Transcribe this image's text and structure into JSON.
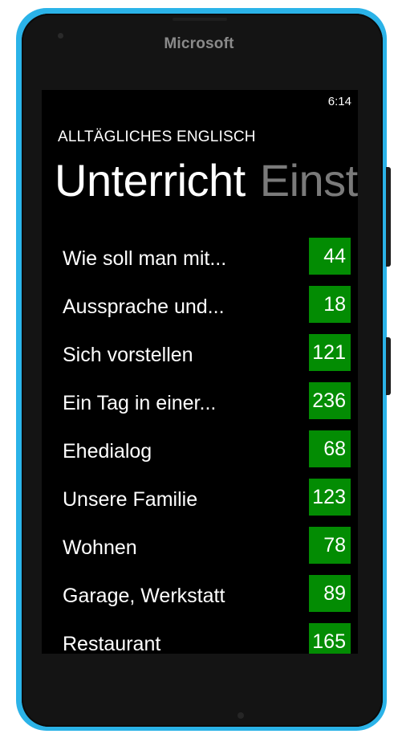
{
  "device": {
    "brand": "Microsoft"
  },
  "status_bar": {
    "time": "6:14"
  },
  "app": {
    "title": "ALLTÄGLICHES ENGLISCH"
  },
  "pivot": {
    "active": "Unterricht",
    "next": "Einst"
  },
  "lessons": [
    {
      "title": "Wie soll man mit...",
      "count": "44"
    },
    {
      "title": "Aussprache und...",
      "count": "18"
    },
    {
      "title": "Sich vorstellen",
      "count": "121"
    },
    {
      "title": "Ein Tag in einer...",
      "count": "236"
    },
    {
      "title": "Ehedialog",
      "count": "68"
    },
    {
      "title": "Unsere Familie",
      "count": "123"
    },
    {
      "title": "Wohnen",
      "count": "78"
    },
    {
      "title": "Garage, Werkstatt",
      "count": "89"
    },
    {
      "title": "Restaurant",
      "count": "165"
    }
  ],
  "colors": {
    "frame": "#2bb3e8",
    "accent": "#038c03",
    "background": "#000000"
  }
}
